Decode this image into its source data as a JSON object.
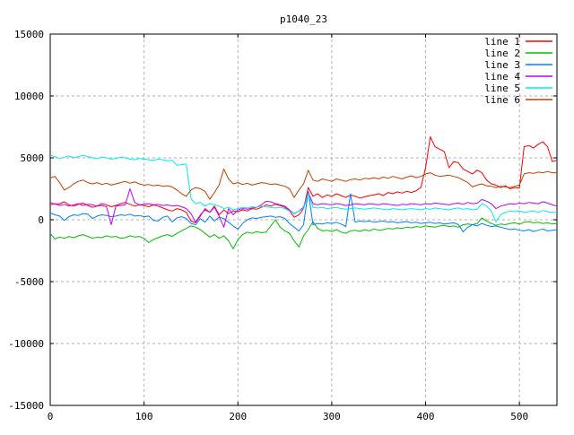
{
  "window": {
    "background": "#ffffff"
  },
  "chart_data": {
    "type": "line",
    "title": "p1040_23",
    "xlabel": "",
    "ylabel": "",
    "xlim": [
      0,
      540
    ],
    "ylim": [
      -15000,
      15000
    ],
    "x_ticks": [
      0,
      100,
      200,
      300,
      400,
      500
    ],
    "y_ticks": [
      -15000,
      -10000,
      -5000,
      0,
      5000,
      10000,
      15000
    ],
    "grid": true,
    "grid_style": "dashed",
    "legend_position": "top-right-inside",
    "border_color": "#000000",
    "grid_color": "#b0b0b0",
    "x_start": 0,
    "x_step": 5,
    "series": [
      {
        "name": "line 1",
        "color": "#ff0000",
        "values": [
          1400,
          1250,
          1300,
          1450,
          1200,
          1100,
          1250,
          1350,
          1150,
          1000,
          1100,
          1300,
          1200,
          1050,
          1150,
          1300,
          1400,
          1250,
          1100,
          1200,
          1150,
          1050,
          1200,
          1100,
          950,
          800,
          700,
          900,
          800,
          600,
          -100,
          -250,
          300,
          900,
          600,
          1100,
          400,
          800,
          500,
          700,
          650,
          800,
          700,
          900,
          850,
          1000,
          1200,
          1100,
          1250,
          1150,
          1000,
          700,
          200,
          400,
          900,
          2600,
          1900,
          2100,
          1800,
          2000,
          1900,
          2100,
          1950,
          1800,
          2000,
          1900,
          1750,
          1850,
          1950,
          2000,
          2100,
          1950,
          2200,
          2100,
          2250,
          2150,
          2300,
          2200,
          2350,
          2600,
          4200,
          6700,
          5900,
          5700,
          5500,
          4200,
          4700,
          4600,
          4100,
          3900,
          3700,
          4000,
          3800,
          3200,
          2900,
          2800,
          2600,
          2750,
          2500,
          2600,
          2550,
          5900,
          6000,
          5800,
          6100,
          6300,
          5900,
          4700,
          4800
        ]
      },
      {
        "name": "line 2",
        "color": "#00c000",
        "values": [
          -1100,
          -1550,
          -1400,
          -1500,
          -1350,
          -1450,
          -1300,
          -1200,
          -1350,
          -1500,
          -1400,
          -1450,
          -1300,
          -1400,
          -1350,
          -1500,
          -1450,
          -1300,
          -1400,
          -1350,
          -1500,
          -1850,
          -1600,
          -1450,
          -1300,
          -1200,
          -1350,
          -1100,
          -900,
          -700,
          -500,
          -600,
          -800,
          -1100,
          -1400,
          -1200,
          -1500,
          -1300,
          -1700,
          -2350,
          -1600,
          -1200,
          -1000,
          -1100,
          -950,
          -1050,
          -1000,
          -500,
          0,
          -600,
          -900,
          -1100,
          -1700,
          -2200,
          -1300,
          -800,
          -150,
          -700,
          -900,
          -850,
          -950,
          -800,
          -1000,
          -1100,
          -900,
          -850,
          -950,
          -800,
          -900,
          -750,
          -850,
          -800,
          -700,
          -750,
          -650,
          -700,
          -600,
          -650,
          -550,
          -600,
          -500,
          -550,
          -600,
          -500,
          -450,
          -550,
          -500,
          -600,
          -400,
          -350,
          -400,
          -300,
          150,
          -100,
          -300,
          -450,
          -350,
          -400,
          -300,
          -250,
          -350,
          -200,
          -150,
          -250,
          -200,
          -300,
          -250,
          -350,
          -300
        ]
      },
      {
        "name": "line 3",
        "color": "#0080ff",
        "values": [
          550,
          400,
          300,
          -50,
          250,
          400,
          350,
          500,
          450,
          100,
          300,
          400,
          350,
          250,
          300,
          400,
          350,
          450,
          300,
          350,
          250,
          300,
          -50,
          -100,
          200,
          300,
          -180,
          150,
          250,
          100,
          -300,
          -400,
          100,
          -200,
          300,
          -100,
          200,
          100,
          -200,
          -500,
          -760,
          -300,
          0,
          150,
          100,
          200,
          250,
          300,
          200,
          250,
          100,
          -300,
          -600,
          -905,
          -400,
          2300,
          -400,
          -300,
          -350,
          -250,
          -300,
          -200,
          -350,
          -540,
          2100,
          -200,
          -100,
          -150,
          -100,
          -200,
          -150,
          -100,
          -200,
          -150,
          -250,
          -200,
          -150,
          -250,
          -200,
          -300,
          -250,
          -200,
          -300,
          -250,
          -350,
          -300,
          -250,
          -400,
          -980,
          -600,
          -400,
          -500,
          -300,
          -450,
          -550,
          -500,
          -600,
          -700,
          -800,
          -750,
          -850,
          -900,
          -800,
          -950,
          -850,
          -750,
          -900,
          -850,
          -800
        ]
      },
      {
        "name": "line 4",
        "color": "#c000ff",
        "values": [
          1200,
          1300,
          1150,
          1250,
          1100,
          1200,
          1300,
          1150,
          1250,
          1200,
          1100,
          1150,
          1050,
          -400,
          1100,
          1150,
          1200,
          2500,
          1400,
          1200,
          1250,
          1300,
          1200,
          1250,
          1150,
          1200,
          1100,
          1150,
          1050,
          900,
          500,
          -200,
          400,
          800,
          600,
          1000,
          300,
          -600,
          900,
          400,
          800,
          900,
          850,
          950,
          1000,
          1200,
          1500,
          1450,
          1300,
          1200,
          1100,
          800,
          470,
          700,
          1000,
          2200,
          1300,
          1200,
          1300,
          1250,
          1200,
          1300,
          1250,
          1150,
          1200,
          1300,
          1250,
          1200,
          1300,
          1250,
          1200,
          1300,
          1250,
          1200,
          1150,
          1250,
          1200,
          1300,
          1250,
          1200,
          1300,
          1250,
          1350,
          1300,
          1250,
          1200,
          1300,
          1350,
          1250,
          1400,
          1300,
          1350,
          1630,
          1500,
          1300,
          900,
          1100,
          1200,
          1300,
          1250,
          1350,
          1300,
          1400,
          1350,
          1300,
          1450,
          1350,
          1200,
          1100
        ]
      },
      {
        "name": "line 5",
        "color": "#00eeee",
        "values": [
          5200,
          5100,
          4950,
          5050,
          5150,
          5000,
          5100,
          5200,
          5100,
          5000,
          4950,
          5050,
          5000,
          4900,
          4950,
          5050,
          5000,
          4900,
          4850,
          4950,
          4900,
          4850,
          4800,
          4900,
          4850,
          4750,
          4800,
          4400,
          4450,
          4500,
          1700,
          1300,
          1400,
          1100,
          1300,
          1200,
          1100,
          900,
          1000,
          800,
          900,
          1000,
          950,
          1050,
          1000,
          1100,
          1050,
          1000,
          950,
          1000,
          900,
          700,
          500,
          700,
          900,
          2100,
          1000,
          950,
          1000,
          900,
          950,
          1000,
          900,
          850,
          900,
          950,
          900,
          850,
          900,
          950,
          900,
          850,
          800,
          900,
          850,
          800,
          850,
          900,
          850,
          800,
          900,
          850,
          950,
          900,
          850,
          800,
          900,
          950,
          850,
          900,
          800,
          850,
          1300,
          1100,
          700,
          -180,
          400,
          600,
          700,
          650,
          700,
          600,
          650,
          700,
          600,
          750,
          650,
          600,
          600
        ]
      },
      {
        "name": "line 6",
        "color": "#c04000",
        "values": [
          3370,
          3500,
          3000,
          2400,
          2600,
          2900,
          3100,
          3200,
          3000,
          2900,
          3000,
          2850,
          2950,
          2800,
          2900,
          3000,
          3100,
          2950,
          3050,
          2900,
          2800,
          2850,
          2750,
          2800,
          2700,
          2750,
          2650,
          2400,
          2100,
          1900,
          2400,
          2600,
          2500,
          2300,
          1650,
          2200,
          2800,
          4100,
          3300,
          2900,
          3000,
          2850,
          2950,
          2800,
          2900,
          3000,
          2950,
          2850,
          2900,
          2800,
          2700,
          2500,
          1800,
          2400,
          2900,
          4000,
          3200,
          3100,
          3300,
          3200,
          3100,
          3300,
          3200,
          3100,
          3250,
          3300,
          3200,
          3350,
          3300,
          3400,
          3300,
          3450,
          3350,
          3500,
          3400,
          3300,
          3450,
          3550,
          3400,
          3500,
          3700,
          3800,
          3600,
          3500,
          3550,
          3600,
          3500,
          3400,
          3200,
          3000,
          2650,
          2800,
          2900,
          2750,
          2700,
          2600,
          2700,
          2650,
          2600,
          2700,
          2800,
          3700,
          3800,
          3750,
          3850,
          3800,
          3900,
          3800,
          3800
        ]
      }
    ]
  }
}
